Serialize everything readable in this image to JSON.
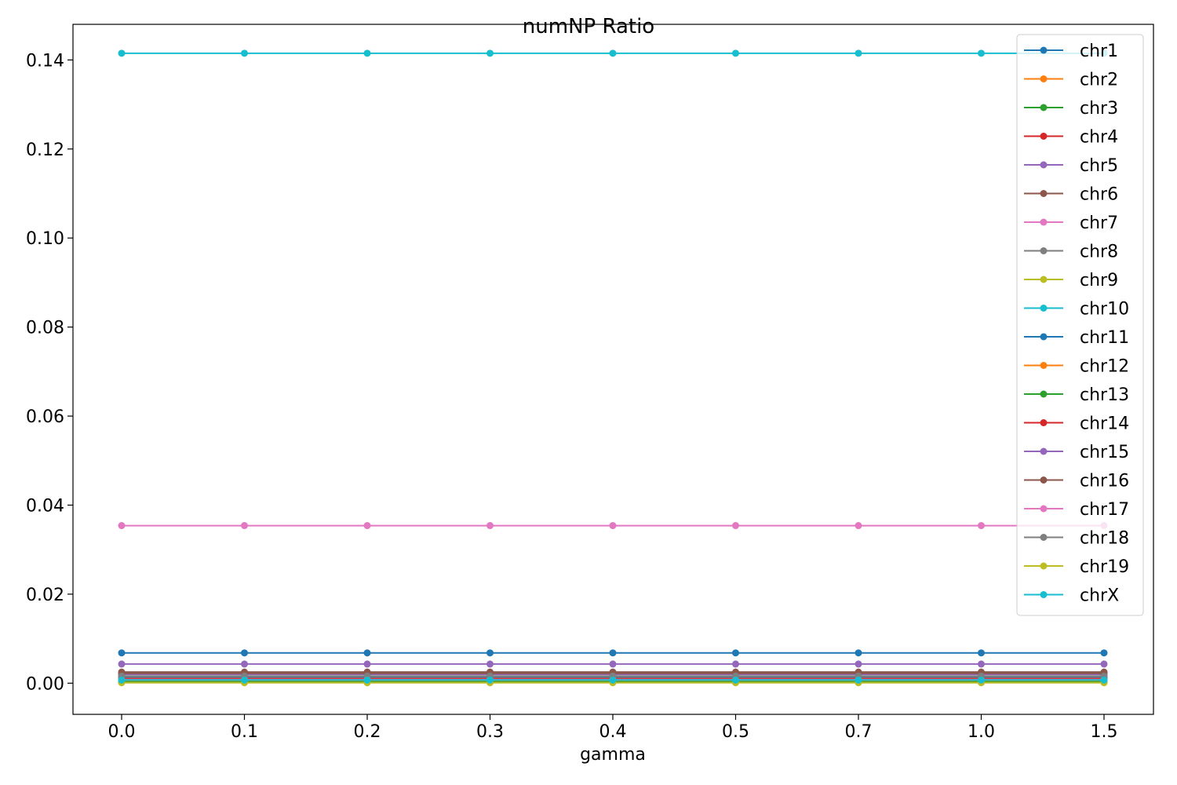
{
  "chart_data": {
    "type": "line",
    "title": "numNP Ratio",
    "xlabel": "gamma",
    "ylabel": "",
    "x": [
      "0.0",
      "0.1",
      "0.2",
      "0.3",
      "0.4",
      "0.5",
      "0.7",
      "1.0",
      "1.5"
    ],
    "ylim": [
      -0.007,
      0.148
    ],
    "yticks": [
      "0.00",
      "0.02",
      "0.04",
      "0.06",
      "0.08",
      "0.10",
      "0.12",
      "0.14"
    ],
    "grid": false,
    "legend_position": "top-right",
    "series": [
      {
        "name": "chr1",
        "color": "#1f77b4",
        "values": [
          0.0068,
          0.0068,
          0.0068,
          0.0068,
          0.0068,
          0.0068,
          0.0068,
          0.0068,
          0.0068
        ]
      },
      {
        "name": "chr2",
        "color": "#ff7f0e",
        "values": [
          0.0006,
          0.0006,
          0.0006,
          0.0006,
          0.0006,
          0.0006,
          0.0006,
          0.0006,
          0.0006
        ]
      },
      {
        "name": "chr3",
        "color": "#2ca02c",
        "values": [
          0.0005,
          0.0005,
          0.0005,
          0.0005,
          0.0005,
          0.0005,
          0.0005,
          0.0005,
          0.0005
        ]
      },
      {
        "name": "chr4",
        "color": "#d62728",
        "values": [
          0.0009,
          0.0009,
          0.0009,
          0.0009,
          0.0009,
          0.0009,
          0.0009,
          0.0009,
          0.0009
        ]
      },
      {
        "name": "chr5",
        "color": "#9467bd",
        "values": [
          0.0043,
          0.0043,
          0.0043,
          0.0043,
          0.0043,
          0.0043,
          0.0043,
          0.0043,
          0.0043
        ]
      },
      {
        "name": "chr6",
        "color": "#8c564b",
        "values": [
          0.0025,
          0.0025,
          0.0025,
          0.0025,
          0.0025,
          0.0025,
          0.0025,
          0.0025,
          0.0025
        ]
      },
      {
        "name": "chr7",
        "color": "#e377c2",
        "values": [
          0.0354,
          0.0354,
          0.0354,
          0.0354,
          0.0354,
          0.0354,
          0.0354,
          0.0354,
          0.0354
        ]
      },
      {
        "name": "chr8",
        "color": "#7f7f7f",
        "values": [
          0.0012,
          0.0012,
          0.0012,
          0.0012,
          0.0012,
          0.0012,
          0.0012,
          0.0012,
          0.0012
        ]
      },
      {
        "name": "chr9",
        "color": "#bcbd22",
        "values": [
          0.0002,
          0.0002,
          0.0002,
          0.0002,
          0.0002,
          0.0002,
          0.0002,
          0.0002,
          0.0002
        ]
      },
      {
        "name": "chr10",
        "color": "#17becf",
        "values": [
          0.1415,
          0.1415,
          0.1415,
          0.1415,
          0.1415,
          0.1415,
          0.1415,
          0.1415,
          0.1415
        ]
      },
      {
        "name": "chr11",
        "color": "#1f77b4",
        "values": [
          0.0015,
          0.0015,
          0.0015,
          0.0015,
          0.0015,
          0.0015,
          0.0015,
          0.0015,
          0.0015
        ]
      },
      {
        "name": "chr12",
        "color": "#ff7f0e",
        "values": [
          0.0004,
          0.0004,
          0.0004,
          0.0004,
          0.0004,
          0.0004,
          0.0004,
          0.0004,
          0.0004
        ]
      },
      {
        "name": "chr13",
        "color": "#2ca02c",
        "values": [
          0.0003,
          0.0003,
          0.0003,
          0.0003,
          0.0003,
          0.0003,
          0.0003,
          0.0003,
          0.0003
        ]
      },
      {
        "name": "chr14",
        "color": "#d62728",
        "values": [
          0.001,
          0.001,
          0.001,
          0.001,
          0.001,
          0.001,
          0.001,
          0.001,
          0.001
        ]
      },
      {
        "name": "chr15",
        "color": "#9467bd",
        "values": [
          0.002,
          0.002,
          0.002,
          0.002,
          0.002,
          0.002,
          0.002,
          0.002,
          0.002
        ]
      },
      {
        "name": "chr16",
        "color": "#8c564b",
        "values": [
          0.0022,
          0.0022,
          0.0022,
          0.0022,
          0.0022,
          0.0022,
          0.0022,
          0.0022,
          0.0022
        ]
      },
      {
        "name": "chr17",
        "color": "#e377c2",
        "values": [
          0.0008,
          0.0008,
          0.0008,
          0.0008,
          0.0008,
          0.0008,
          0.0008,
          0.0008,
          0.0008
        ]
      },
      {
        "name": "chr18",
        "color": "#7f7f7f",
        "values": [
          0.0016,
          0.0016,
          0.0016,
          0.0016,
          0.0016,
          0.0016,
          0.0016,
          0.0016,
          0.0016
        ]
      },
      {
        "name": "chr19",
        "color": "#bcbd22",
        "values": [
          0.0001,
          0.0001,
          0.0001,
          0.0001,
          0.0001,
          0.0001,
          0.0001,
          0.0001,
          0.0001
        ]
      },
      {
        "name": "chrX",
        "color": "#17becf",
        "values": [
          0.0007,
          0.0007,
          0.0007,
          0.0007,
          0.0007,
          0.0007,
          0.0007,
          0.0007,
          0.0007
        ]
      }
    ]
  }
}
